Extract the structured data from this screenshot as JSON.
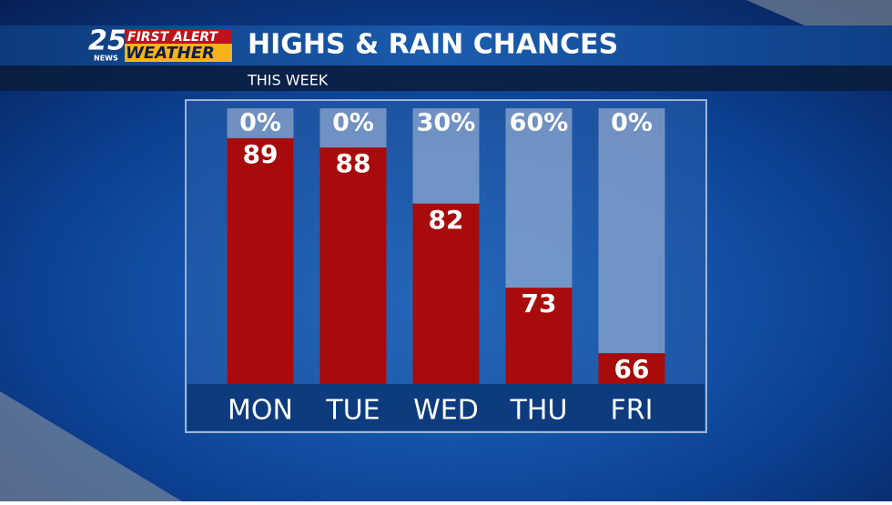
{
  "logo": {
    "number": "25",
    "station": "NEWS",
    "line1": "FIRST ALERT",
    "line2": "WEATHER"
  },
  "chart_data": {
    "type": "bar",
    "title": "HIGHS & RAIN CHANCES",
    "subtitle": "THIS WEEK",
    "categories": [
      "MON",
      "TUE",
      "WED",
      "THU",
      "FRI"
    ],
    "values": [
      89,
      88,
      82,
      73,
      66
    ],
    "color": "#a80b0b",
    "ylim": [
      62.7,
      92.2
    ],
    "rain_chance": {
      "values": [
        0,
        0,
        30,
        60,
        0
      ],
      "value_labels": [
        "0%",
        "0%",
        "30%",
        "60%",
        "0%"
      ]
    }
  }
}
